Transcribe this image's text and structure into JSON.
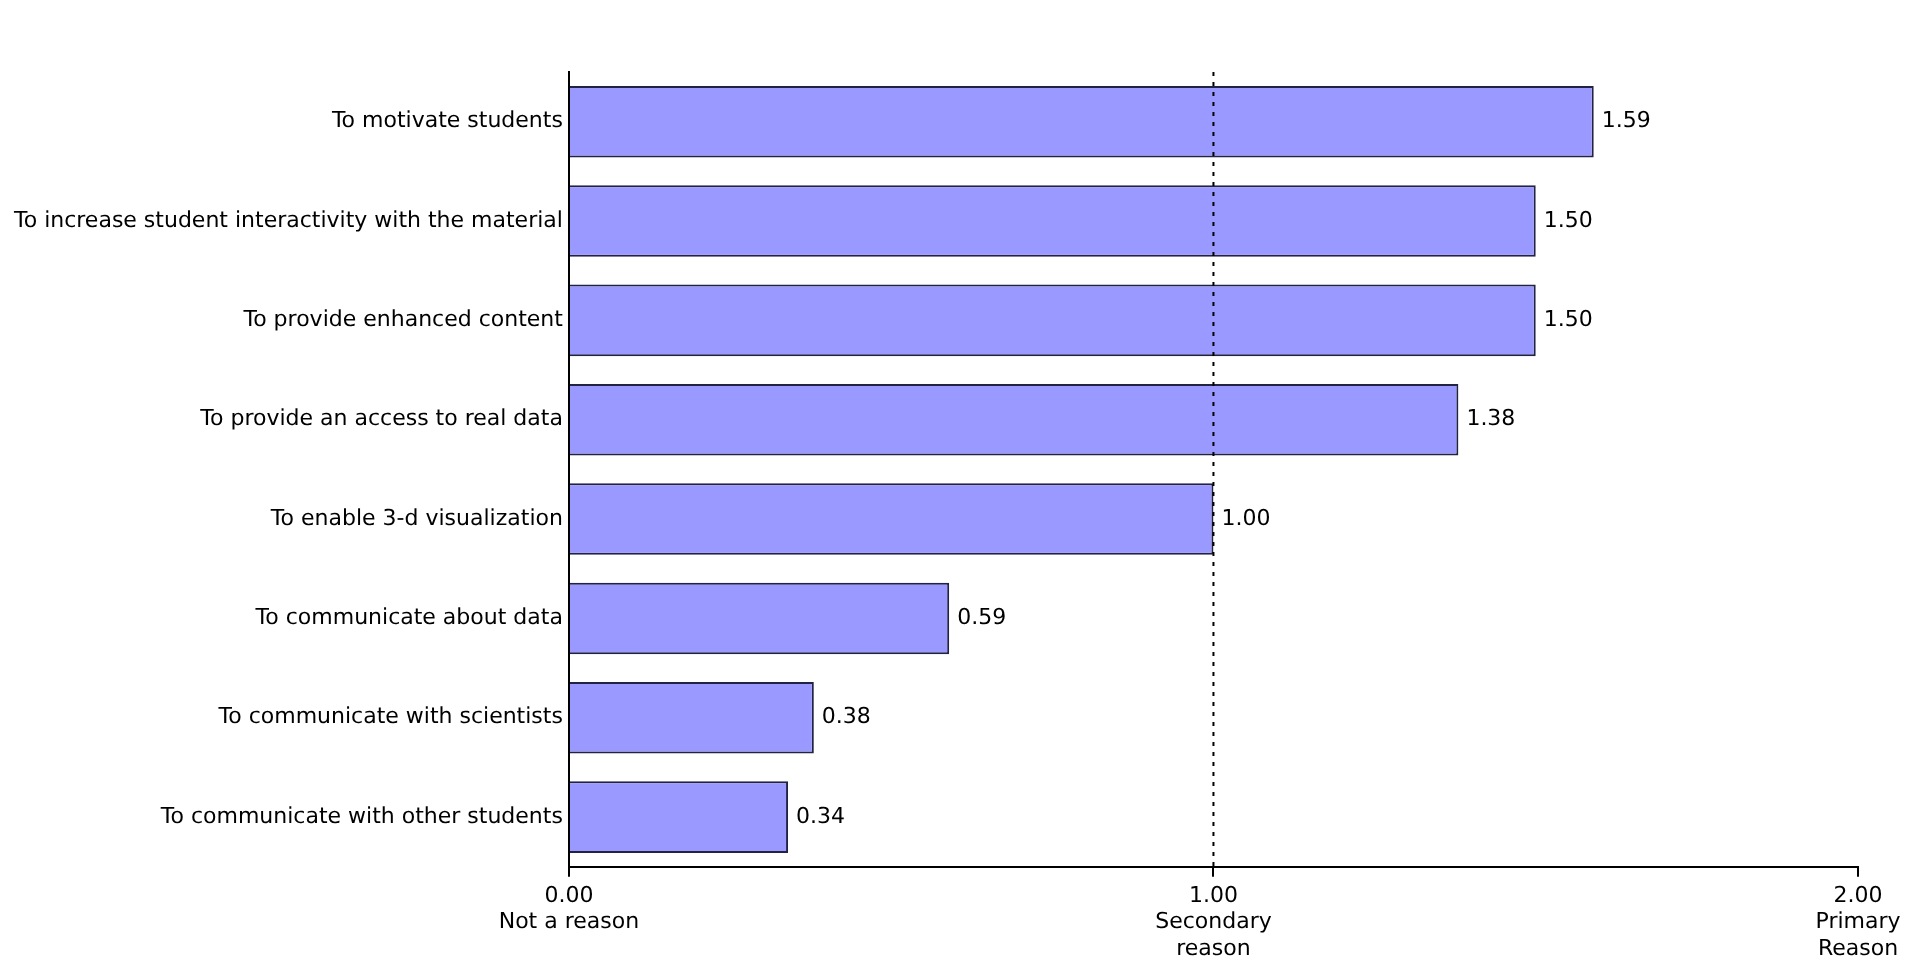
{
  "chart_data": {
    "type": "bar",
    "orientation": "horizontal",
    "categories": [
      "To motivate students",
      "To increase student interactivity with the material",
      "To provide enhanced content",
      "To provide an access to real data",
      "To enable 3-d visualization",
      "To communicate about data",
      "To communicate with scientists",
      "To communicate with other students"
    ],
    "values": [
      1.59,
      1.5,
      1.5,
      1.38,
      1.0,
      0.59,
      0.38,
      0.34
    ],
    "value_labels": [
      "1.59",
      "1.50",
      "1.50",
      "1.38",
      "1.00",
      "0.59",
      "0.38",
      "0.34"
    ],
    "color": "#9999ff",
    "xlim": [
      0,
      2
    ],
    "xticks": [
      {
        "value": 0,
        "label": "0.00\nNot a reason"
      },
      {
        "value": 1,
        "label": "1.00\nSecondary\nreason"
      },
      {
        "value": 2,
        "label": "2.00\nPrimary\nReason"
      }
    ],
    "ref_lines": [
      {
        "axis": "x",
        "value": 1,
        "line_style": "dotted",
        "color": "#000000"
      }
    ],
    "grid": false,
    "legend": false
  }
}
